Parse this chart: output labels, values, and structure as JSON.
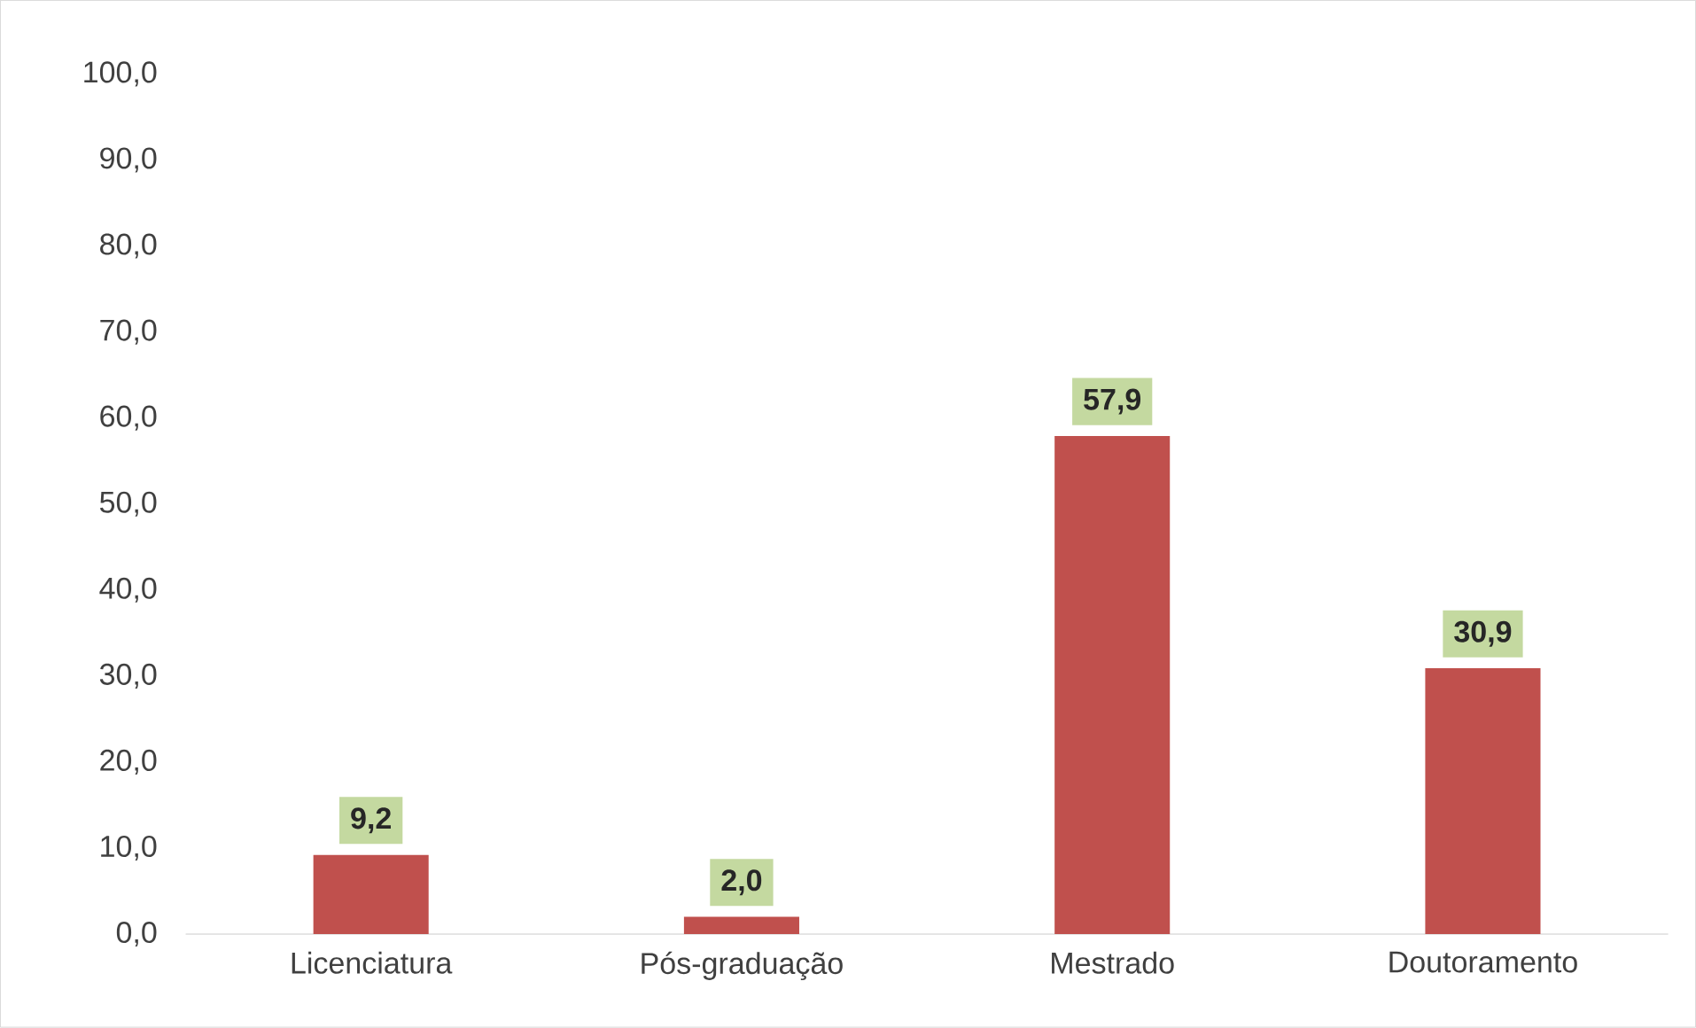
{
  "chart_data": {
    "type": "bar",
    "categories": [
      "Licenciatura",
      "Pós-graduação",
      "Mestrado",
      "Doutoramento"
    ],
    "values": [
      9.2,
      2.0,
      57.9,
      30.9
    ],
    "value_labels": [
      "9,2",
      "2,0",
      "57,9",
      "30,9"
    ],
    "color": "#c0504d",
    "ylim": [
      0,
      100
    ],
    "yticks": [
      {
        "value": 0,
        "label": "0,0"
      },
      {
        "value": 10,
        "label": "10,0"
      },
      {
        "value": 20,
        "label": "20,0"
      },
      {
        "value": 30,
        "label": "30,0"
      },
      {
        "value": 40,
        "label": "40,0"
      },
      {
        "value": 50,
        "label": "50,0"
      },
      {
        "value": 60,
        "label": "60,0"
      },
      {
        "value": 70,
        "label": "70,0"
      },
      {
        "value": 80,
        "label": "80,0"
      },
      {
        "value": 90,
        "label": "90,0"
      },
      {
        "value": 100,
        "label": "100,0"
      }
    ]
  }
}
